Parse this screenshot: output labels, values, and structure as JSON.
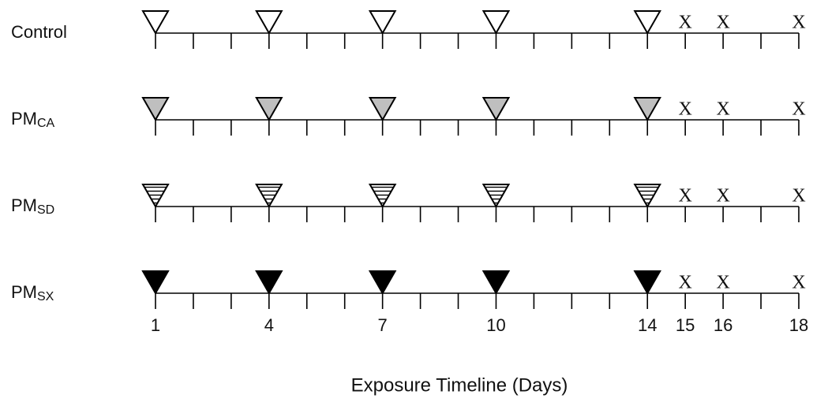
{
  "rows": [
    {
      "label": "Control",
      "marker_fill": "#ffffff"
    },
    {
      "label": "PM",
      "sub": "CA",
      "marker_fill": "#bfbfbf"
    },
    {
      "label": "PM",
      "sub": "SD",
      "marker_fill": "hatch"
    },
    {
      "label": "PM",
      "sub": "SX",
      "marker_fill": "#000000"
    }
  ],
  "exposure_days": [
    1,
    4,
    7,
    10,
    14
  ],
  "end_days": [
    15,
    16,
    18
  ],
  "end_marker": "X",
  "xlim": [
    1,
    18
  ],
  "day_labels": [
    1,
    4,
    7,
    10,
    14,
    15,
    16,
    18
  ],
  "axis_title": "Exposure Timeline (Days)"
}
